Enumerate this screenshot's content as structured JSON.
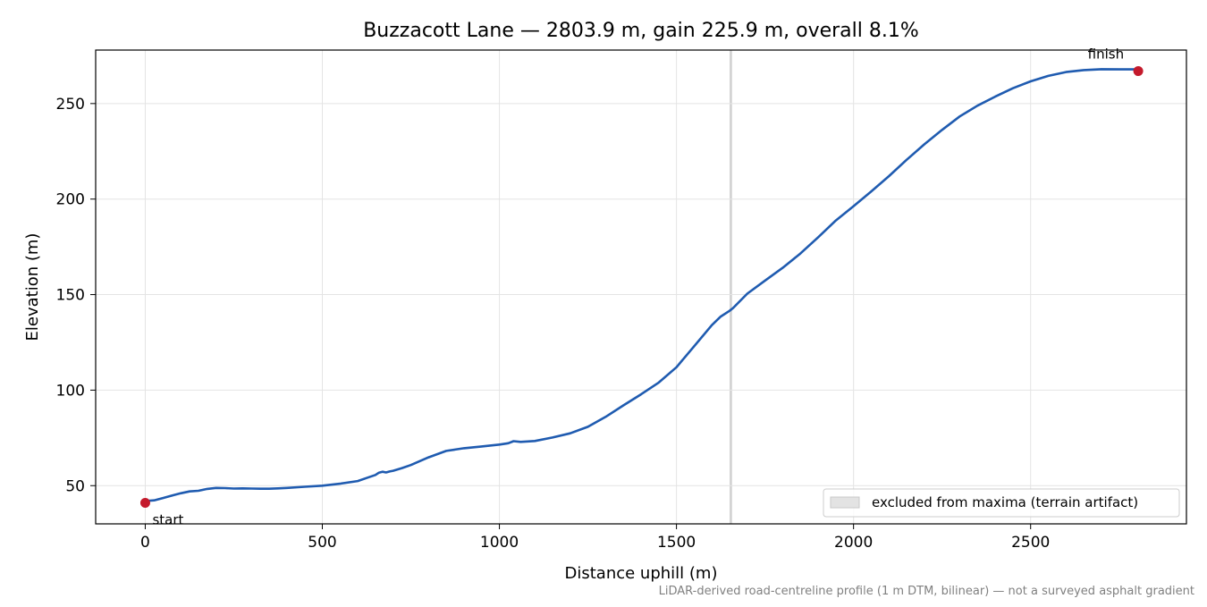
{
  "chart_data": {
    "type": "line",
    "title": "Buzzacott Lane — 2803.9 m, gain 225.9 m, overall 8.1%",
    "xlabel": "Distance uphill (m)",
    "ylabel": "Elevation (m)",
    "xlim": [
      -140,
      2940
    ],
    "ylim": [
      30,
      278
    ],
    "x_ticks": [
      0,
      500,
      1000,
      1500,
      2000,
      2500
    ],
    "y_ticks": [
      50,
      100,
      150,
      200,
      250
    ],
    "x_tick_labels": [
      "0",
      "500",
      "1000",
      "1500",
      "2000",
      "2500"
    ],
    "y_tick_labels": [
      "50",
      "100",
      "150",
      "200",
      "250"
    ],
    "grid": true,
    "series": [
      {
        "color": "#1f5bb0",
        "x": [
          0,
          25,
          50,
          75,
          100,
          125,
          150,
          175,
          200,
          225,
          250,
          275,
          300,
          325,
          350,
          375,
          400,
          450,
          500,
          550,
          600,
          625,
          650,
          660,
          670,
          680,
          690,
          700,
          725,
          750,
          800,
          850,
          875,
          900,
          950,
          1000,
          1025,
          1040,
          1060,
          1100,
          1150,
          1200,
          1250,
          1300,
          1350,
          1400,
          1450,
          1500,
          1550,
          1600,
          1625,
          1650,
          1660,
          1700,
          1750,
          1800,
          1850,
          1900,
          1950,
          2000,
          2050,
          2100,
          2150,
          2200,
          2250,
          2300,
          2350,
          2400,
          2450,
          2500,
          2550,
          2600,
          2650,
          2700,
          2750,
          2803.9
        ],
        "y": [
          42,
          42.3,
          43.5,
          44.8,
          46,
          47,
          47.3,
          48.3,
          48.8,
          48.7,
          48.5,
          48.6,
          48.5,
          48.4,
          48.4,
          48.6,
          48.8,
          49.4,
          50,
          51,
          52.4,
          54,
          55.6,
          56.8,
          57.3,
          56.9,
          57.4,
          57.8,
          59.2,
          60.8,
          64.8,
          68.2,
          68.9,
          69.6,
          70.5,
          71.5,
          72.2,
          73.3,
          72.9,
          73.4,
          75.2,
          77.4,
          80.8,
          86,
          92,
          97.8,
          104,
          112,
          123,
          134,
          138.5,
          141.5,
          143,
          150.5,
          157.3,
          164,
          171.5,
          180,
          188.8,
          196.3,
          204,
          212,
          220.6,
          228.7,
          236.2,
          243.3,
          248.9,
          253.6,
          258,
          261.6,
          264.5,
          266.5,
          267.5,
          268,
          267.9,
          267.9
        ]
      }
    ],
    "markers": [
      {
        "x": 0,
        "y": 41,
        "label": "start",
        "color": "#c41a2c"
      },
      {
        "x": 2803.9,
        "y": 267,
        "label": "finish",
        "color": "#c41a2c"
      }
    ],
    "excluded_band": {
      "x0": 1650,
      "x1": 1657,
      "color": "#d4d4d4"
    },
    "legend": {
      "position": "bottom-right",
      "label": "excluded from maxima (terrain artifact)"
    },
    "footnote": "LiDAR-derived road-centreline profile (1 m DTM, bilinear) — not a surveyed asphalt gradient"
  }
}
